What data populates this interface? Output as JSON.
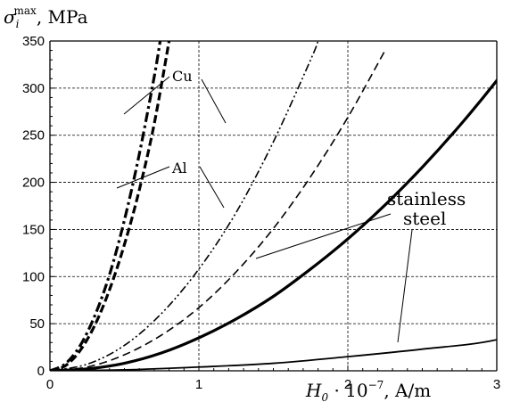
{
  "chart_data": {
    "type": "line",
    "title": "",
    "ylabel": "σ_i^max, MPa",
    "ylabel_main": "σ",
    "ylabel_sub": "i",
    "ylabel_sup": "max",
    "ylabel_unit": ", MPa",
    "xlabel": "H_0 · 10^-7, A/m",
    "xlabel_main": "H",
    "xlabel_sub": "0",
    "xlabel_mid": " · 10",
    "xlabel_sup": "−7",
    "xlabel_unit": ", A/m",
    "xlim": [
      0,
      3
    ],
    "ylim": [
      0,
      350
    ],
    "x_ticks": [
      0,
      1,
      2,
      3
    ],
    "x_tick_labels": [
      "0",
      "1",
      "2",
      "3"
    ],
    "y_ticks": [
      0,
      50,
      100,
      150,
      200,
      250,
      300,
      350
    ],
    "y_tick_labels": [
      "0",
      "50",
      "100",
      "150",
      "200",
      "250",
      "300",
      "350"
    ],
    "grid": true,
    "series": [
      {
        "name": "Cu",
        "style": "dash-dot-thick",
        "x": [
          0,
          0.1,
          0.2,
          0.3,
          0.4,
          0.5,
          0.6,
          0.7,
          0.74
        ],
        "y": [
          0,
          7,
          26,
          58,
          102,
          160,
          230,
          312,
          350
        ]
      },
      {
        "name": "Cu",
        "style": "dash-dot-dot",
        "x": [
          0,
          0.25,
          0.5,
          0.75,
          1.0,
          1.25,
          1.5,
          1.75,
          1.8
        ],
        "y": [
          0,
          7,
          27,
          61,
          108,
          168,
          243,
          330,
          350
        ]
      },
      {
        "name": "Al",
        "style": "dash-thick",
        "x": [
          0,
          0.1,
          0.2,
          0.3,
          0.4,
          0.5,
          0.6,
          0.7,
          0.8
        ],
        "y": [
          0,
          5,
          21,
          48,
          86,
          134,
          192,
          262,
          350
        ]
      },
      {
        "name": "Al",
        "style": "dash",
        "x": [
          0,
          0.25,
          0.5,
          0.75,
          1.0,
          1.25,
          1.5,
          1.75,
          2.0,
          2.25
        ],
        "y": [
          0,
          4,
          17,
          38,
          67,
          105,
          151,
          206,
          269,
          340
        ]
      },
      {
        "name": "stainless steel",
        "style": "solid-thick",
        "x": [
          0,
          0.25,
          0.5,
          0.75,
          1.0,
          1.25,
          1.5,
          1.75,
          2.0,
          2.25,
          2.5,
          2.75,
          3.0,
          3.2
        ],
        "y": [
          0,
          2,
          8,
          19,
          35,
          55,
          79,
          108,
          140,
          176,
          216,
          260,
          308,
          350
        ]
      },
      {
        "name": "stainless steel",
        "style": "solid",
        "x": [
          0,
          0.5,
          1.0,
          1.5,
          2.0,
          2.5,
          3.0,
          3.5
        ],
        "y": [
          0,
          1,
          4,
          8,
          15,
          23,
          33,
          58
        ]
      }
    ],
    "annotations": [
      "Cu",
      "Al",
      "stainless",
      "steel"
    ]
  },
  "colors": {
    "line": "#000000",
    "grid": "#000000",
    "background": "#ffffff"
  }
}
